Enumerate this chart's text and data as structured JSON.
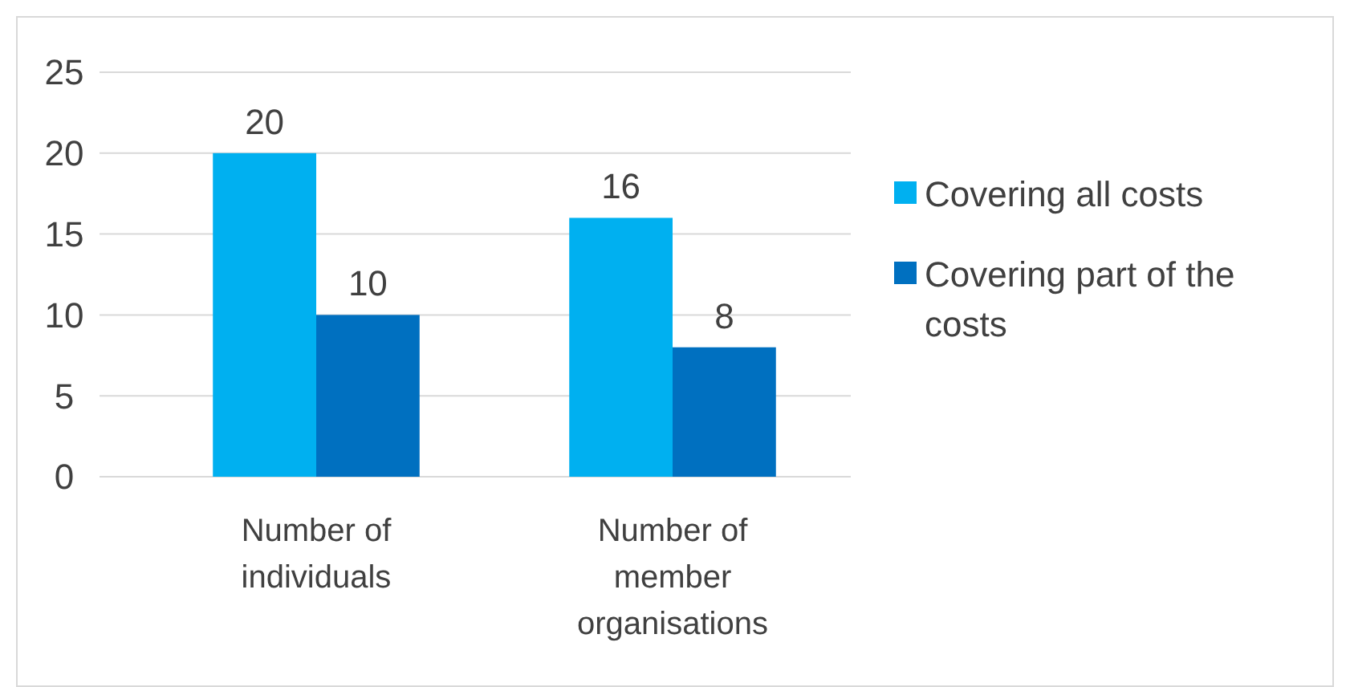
{
  "chart_data": {
    "type": "bar",
    "categories": [
      "Number of individuals",
      "Number of member organisations"
    ],
    "series": [
      {
        "name": "Covering all costs",
        "color": "#00b0f0",
        "values": [
          20,
          16
        ]
      },
      {
        "name": "Covering part of the costs",
        "color": "#0070c0",
        "values": [
          10,
          8
        ]
      }
    ],
    "ylim": [
      0,
      25
    ],
    "yticks": [
      0,
      5,
      10,
      15,
      20,
      25
    ],
    "grid": "y",
    "legend": "right",
    "data_labels": true
  }
}
